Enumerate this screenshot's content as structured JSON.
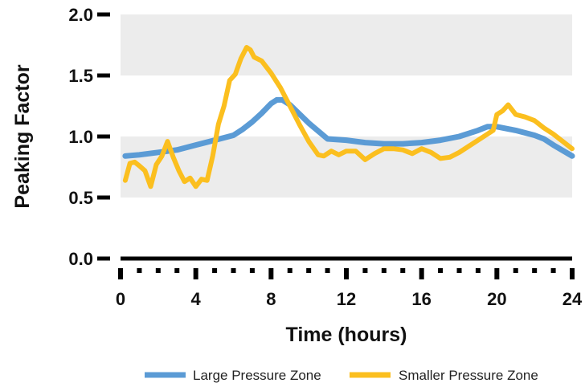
{
  "chart_data": {
    "type": "line",
    "title": "",
    "xlabel": "Time (hours)",
    "ylabel": "Peaking Factor",
    "xlim": [
      0,
      24
    ],
    "ylim": [
      0,
      2
    ],
    "x_ticks": [
      "0",
      "4",
      "8",
      "12",
      "16",
      "20",
      "24"
    ],
    "y_ticks": [
      "0.0",
      "0.5",
      "1.0",
      "1.5",
      "2.0"
    ],
    "bands": [
      [
        0.5,
        1.0
      ],
      [
        1.5,
        2.0
      ]
    ],
    "band_color": "#ececec",
    "legend_position": "bottom",
    "series": [
      {
        "name": "Large Pressure Zone",
        "color": "#5b9bd5",
        "x": [
          0.25,
          1,
          2,
          3,
          4,
          5,
          6,
          6.5,
          7,
          7.5,
          8,
          8.3,
          8.6,
          9,
          10,
          11,
          12,
          13,
          14,
          15,
          16,
          17,
          18,
          19,
          19.5,
          20,
          21,
          22,
          22.5,
          23,
          24
        ],
        "y": [
          0.84,
          0.85,
          0.87,
          0.89,
          0.93,
          0.97,
          1.01,
          1.06,
          1.12,
          1.19,
          1.27,
          1.3,
          1.3,
          1.26,
          1.11,
          0.98,
          0.97,
          0.95,
          0.94,
          0.94,
          0.95,
          0.97,
          1.0,
          1.05,
          1.08,
          1.08,
          1.05,
          1.01,
          0.98,
          0.93,
          0.84
        ]
      },
      {
        "name": "Smaller Pressure Zone",
        "color": "#fbbf1f",
        "x": [
          0.25,
          0.5,
          0.75,
          1,
          1.3,
          1.6,
          1.9,
          2.2,
          2.5,
          2.8,
          3.1,
          3.4,
          3.7,
          4,
          4.3,
          4.6,
          4.9,
          5.2,
          5.5,
          5.8,
          6.1,
          6.4,
          6.7,
          6.9,
          7.1,
          7.5,
          8,
          8.5,
          9,
          9.5,
          10,
          10.5,
          10.8,
          11.2,
          11.6,
          12,
          12.5,
          13,
          13.5,
          14,
          14.5,
          15,
          15.5,
          16,
          16.5,
          17,
          17.5,
          18,
          18.5,
          19,
          19.5,
          19.8,
          20,
          20.3,
          20.6,
          21,
          21.5,
          22,
          22.5,
          23,
          23.5,
          24
        ],
        "y": [
          0.64,
          0.78,
          0.79,
          0.76,
          0.72,
          0.59,
          0.77,
          0.84,
          0.96,
          0.83,
          0.72,
          0.63,
          0.66,
          0.59,
          0.65,
          0.64,
          0.84,
          1.1,
          1.25,
          1.46,
          1.51,
          1.64,
          1.73,
          1.71,
          1.65,
          1.62,
          1.52,
          1.4,
          1.25,
          1.1,
          0.96,
          0.85,
          0.84,
          0.88,
          0.85,
          0.88,
          0.88,
          0.81,
          0.86,
          0.9,
          0.9,
          0.89,
          0.86,
          0.9,
          0.87,
          0.82,
          0.83,
          0.87,
          0.92,
          0.97,
          1.02,
          1.05,
          1.18,
          1.21,
          1.26,
          1.18,
          1.16,
          1.13,
          1.07,
          1.02,
          0.96,
          0.9
        ]
      }
    ]
  }
}
